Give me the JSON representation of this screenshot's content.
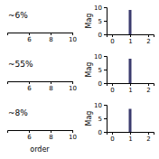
{
  "chart_data": [
    {
      "type": "axis",
      "title": "~6%",
      "xlim": [
        4,
        10
      ],
      "xticks": [
        6,
        8,
        10
      ],
      "tick_labels": "x"
    },
    {
      "type": "bar",
      "x": [
        1
      ],
      "values": [
        9.0
      ],
      "color": "#3b3b6e",
      "xlim": [
        -0.3,
        2.3
      ],
      "xticks": [
        0,
        1,
        2
      ],
      "ylim": [
        0,
        10
      ],
      "yticks": [
        0,
        5,
        10
      ],
      "ylabel": "Mag"
    },
    {
      "type": "axis",
      "title": "~55%",
      "xlim": [
        4,
        10
      ],
      "xticks": [
        6,
        8,
        10
      ],
      "tick_labels": "x"
    },
    {
      "type": "bar",
      "x": [
        1
      ],
      "values": [
        9.0
      ],
      "color": "#3b3b6e",
      "xlim": [
        -0.3,
        2.3
      ],
      "xticks": [
        0,
        1,
        2
      ],
      "ylim": [
        0,
        10
      ],
      "yticks": [
        0,
        5,
        10
      ],
      "ylabel": "Mag"
    },
    {
      "type": "axis",
      "title": "~8%",
      "xlim": [
        4,
        10
      ],
      "xticks": [
        6,
        8,
        10
      ],
      "tick_labels": "x",
      "xlabel": "order"
    },
    {
      "type": "bar",
      "x": [
        1
      ],
      "values": [
        8.5
      ],
      "color": "#3b3b6e",
      "xlim": [
        -0.3,
        2.3
      ],
      "xticks": [
        0,
        1,
        2
      ],
      "ylim": [
        0,
        10
      ],
      "yticks": [
        0,
        5,
        10
      ],
      "ylabel": "Mag"
    }
  ]
}
